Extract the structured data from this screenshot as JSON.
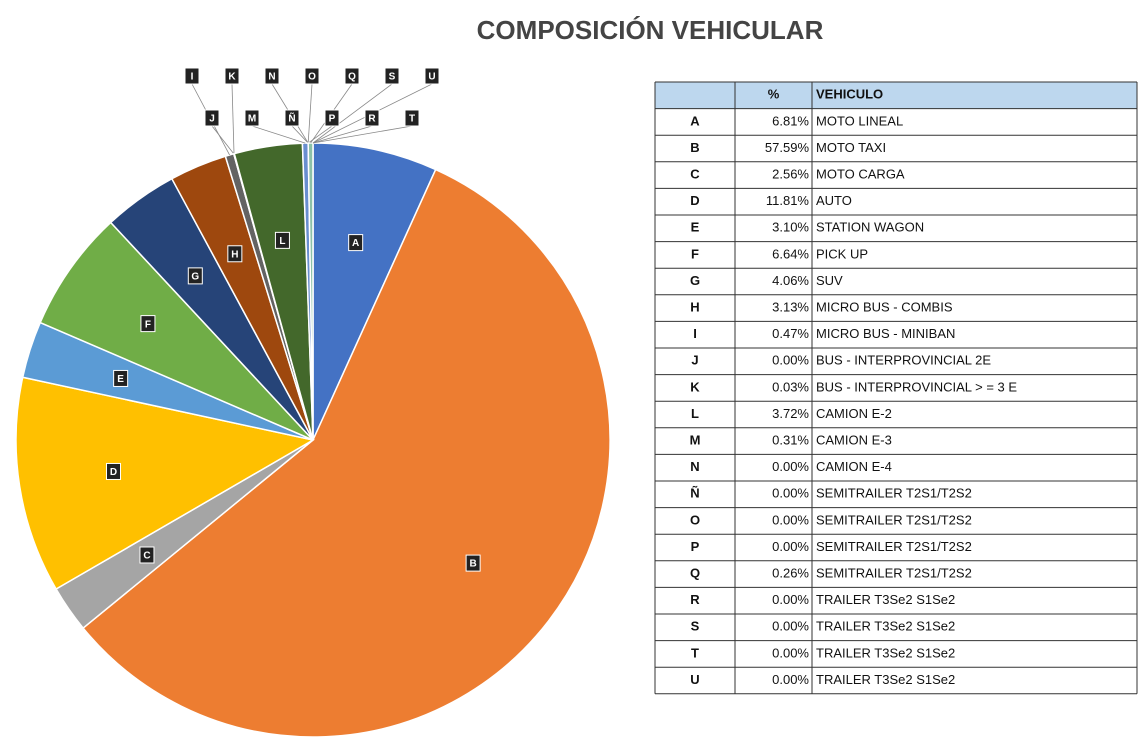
{
  "chart_data": {
    "type": "pie",
    "title": "COMPOSICIÓN VEHICULAR",
    "categories": [
      "A",
      "B",
      "C",
      "D",
      "E",
      "F",
      "G",
      "H",
      "I",
      "J",
      "K",
      "L",
      "M",
      "N",
      "Ñ",
      "O",
      "P",
      "Q",
      "R",
      "S",
      "T",
      "U"
    ],
    "values": [
      6.81,
      57.59,
      2.56,
      11.81,
      3.1,
      6.64,
      4.06,
      3.13,
      0.47,
      0.0,
      0.03,
      3.72,
      0.31,
      0.0,
      0.0,
      0.0,
      0.0,
      0.26,
      0.0,
      0.0,
      0.0,
      0.0
    ],
    "value_labels": [
      "6.81%",
      "57.59%",
      "2.56%",
      "11.81%",
      "3.10%",
      "6.64%",
      "4.06%",
      "3.13%",
      "0.47%",
      "0.00%",
      "0.03%",
      "3.72%",
      "0.31%",
      "0.00%",
      "0.00%",
      "0.00%",
      "0.00%",
      "0.26%",
      "0.00%",
      "0.00%",
      "0.00%",
      "0.00%"
    ],
    "colors": [
      "#4472c4",
      "#ed7d31",
      "#a5a5a5",
      "#ffc000",
      "#5b9bd5",
      "#70ad47",
      "#264478",
      "#9e480e",
      "#636363",
      "#997300",
      "#255e91",
      "#43682b",
      "#698ed0",
      "#f1975a",
      "#b7b7b7",
      "#ffcd33",
      "#7cafdd",
      "#8cc1a8",
      "#335aa1",
      "#c65f1c",
      "#848484",
      "#cc9a00"
    ],
    "table": {
      "headers": [
        "%",
        "VEHICULO"
      ],
      "vehicles": [
        "MOTO LINEAL",
        "MOTO TAXI",
        "MOTO CARGA",
        "AUTO",
        "STATION WAGON",
        "PICK UP",
        "SUV",
        "MICRO BUS - COMBIS",
        "MICRO BUS - MINIBAN",
        "BUS - INTERPROVINCIAL 2E",
        "BUS - INTERPROVINCIAL > = 3 E",
        "CAMION E-2",
        "CAMION E-3",
        "CAMION E-4",
        "SEMITRAILER T2S1/T2S2",
        "SEMITRAILER T2S1/T2S2",
        "SEMITRAILER T2S1/T2S2",
        "SEMITRAILER T2S1/T2S2",
        "TRAILER T3Se2 S1Se2",
        "TRAILER T3Se2 S1Se2",
        "TRAILER T3Se2 S1Se2",
        "TRAILER T3Se2 S1Se2"
      ]
    }
  }
}
